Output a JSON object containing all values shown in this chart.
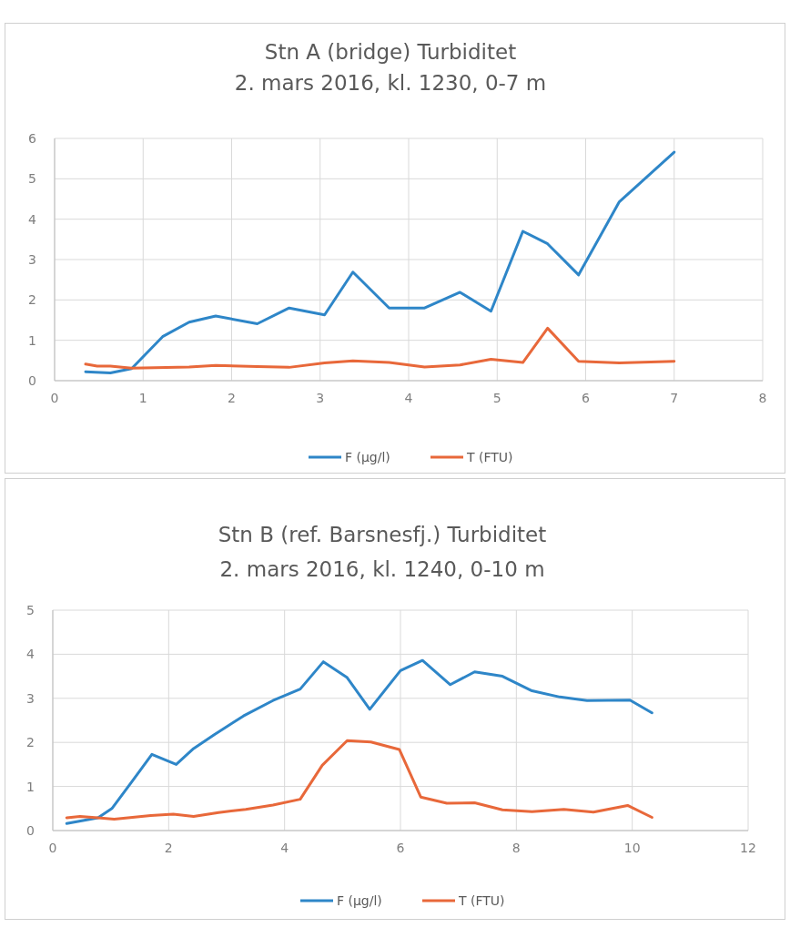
{
  "chart_data": [
    {
      "type": "line",
      "title": "Stn A (bridge) Turbiditet",
      "subtitle": "2. mars 2016, kl. 1230, 0-7 m",
      "xlim": [
        0,
        8
      ],
      "xticks": [
        0,
        1,
        2,
        3,
        4,
        5,
        6,
        7,
        8
      ],
      "ylim": [
        0,
        6
      ],
      "yticks": [
        0,
        1,
        2,
        3,
        4,
        5,
        6
      ],
      "grid": true,
      "legend": "bottom",
      "marker": "none",
      "series": [
        {
          "name": "F (µg/l)",
          "color": "#2e86c8",
          "x": [
            0.35,
            0.63,
            0.87,
            1.22,
            1.52,
            1.82,
            2.29,
            2.65,
            3.05,
            3.37,
            3.78,
            4.18,
            4.58,
            4.93,
            5.29,
            5.57,
            5.92,
            6.38,
            7.0
          ],
          "values": [
            0.22,
            0.19,
            0.3,
            1.09,
            1.45,
            1.6,
            1.41,
            1.8,
            1.63,
            2.69,
            1.8,
            1.8,
            2.19,
            1.72,
            3.7,
            3.39,
            2.62,
            4.43,
            5.66
          ]
        },
        {
          "name": "T (FTU)",
          "color": "#e8683a",
          "x": [
            0.35,
            0.48,
            0.63,
            0.87,
            1.52,
            1.82,
            2.29,
            2.65,
            3.05,
            3.37,
            3.78,
            4.18,
            4.58,
            4.93,
            5.29,
            5.57,
            5.92,
            6.38,
            7.0
          ],
          "values": [
            0.41,
            0.36,
            0.36,
            0.31,
            0.34,
            0.38,
            0.35,
            0.33,
            0.44,
            0.49,
            0.45,
            0.34,
            0.39,
            0.53,
            0.45,
            1.3,
            0.48,
            0.44,
            0.48
          ]
        }
      ]
    },
    {
      "type": "line",
      "title": "Stn B (ref. Barsnesfj.) Turbiditet",
      "subtitle": "2. mars 2016, kl. 1240, 0-10 m",
      "xlim": [
        0,
        12
      ],
      "xticks": [
        0,
        2,
        4,
        6,
        8,
        10,
        12
      ],
      "ylim": [
        0,
        5
      ],
      "yticks": [
        0,
        1,
        2,
        3,
        4,
        5
      ],
      "grid": true,
      "legend": "bottom",
      "marker": "none",
      "series": [
        {
          "name": "F (µg/l)",
          "color": "#2e86c8",
          "x": [
            0.24,
            0.78,
            1.02,
            1.37,
            1.71,
            2.13,
            2.43,
            2.78,
            3.29,
            3.8,
            4.27,
            4.67,
            5.08,
            5.47,
            6.0,
            6.38,
            6.86,
            7.28,
            7.76,
            8.27,
            8.75,
            9.22,
            9.96,
            10.34
          ],
          "values": [
            0.16,
            0.29,
            0.5,
            1.12,
            1.73,
            1.5,
            1.86,
            2.17,
            2.6,
            2.95,
            3.21,
            3.83,
            3.47,
            2.75,
            3.63,
            3.86,
            3.31,
            3.6,
            3.5,
            3.17,
            3.03,
            2.95,
            2.96,
            2.67
          ]
        },
        {
          "name": "T (FTU)",
          "color": "#e8683a",
          "x": [
            0.24,
            0.47,
            0.78,
            1.06,
            1.69,
            2.08,
            2.43,
            2.86,
            3.33,
            3.8,
            4.27,
            4.65,
            5.08,
            5.49,
            5.98,
            6.35,
            6.8,
            7.28,
            7.76,
            8.27,
            8.82,
            9.33,
            9.92,
            10.34
          ],
          "values": [
            0.29,
            0.32,
            0.29,
            0.26,
            0.34,
            0.37,
            0.32,
            0.41,
            0.48,
            0.58,
            0.71,
            1.48,
            2.04,
            2.01,
            1.84,
            0.76,
            0.62,
            0.63,
            0.47,
            0.43,
            0.48,
            0.42,
            0.57,
            0.3
          ]
        }
      ]
    }
  ]
}
